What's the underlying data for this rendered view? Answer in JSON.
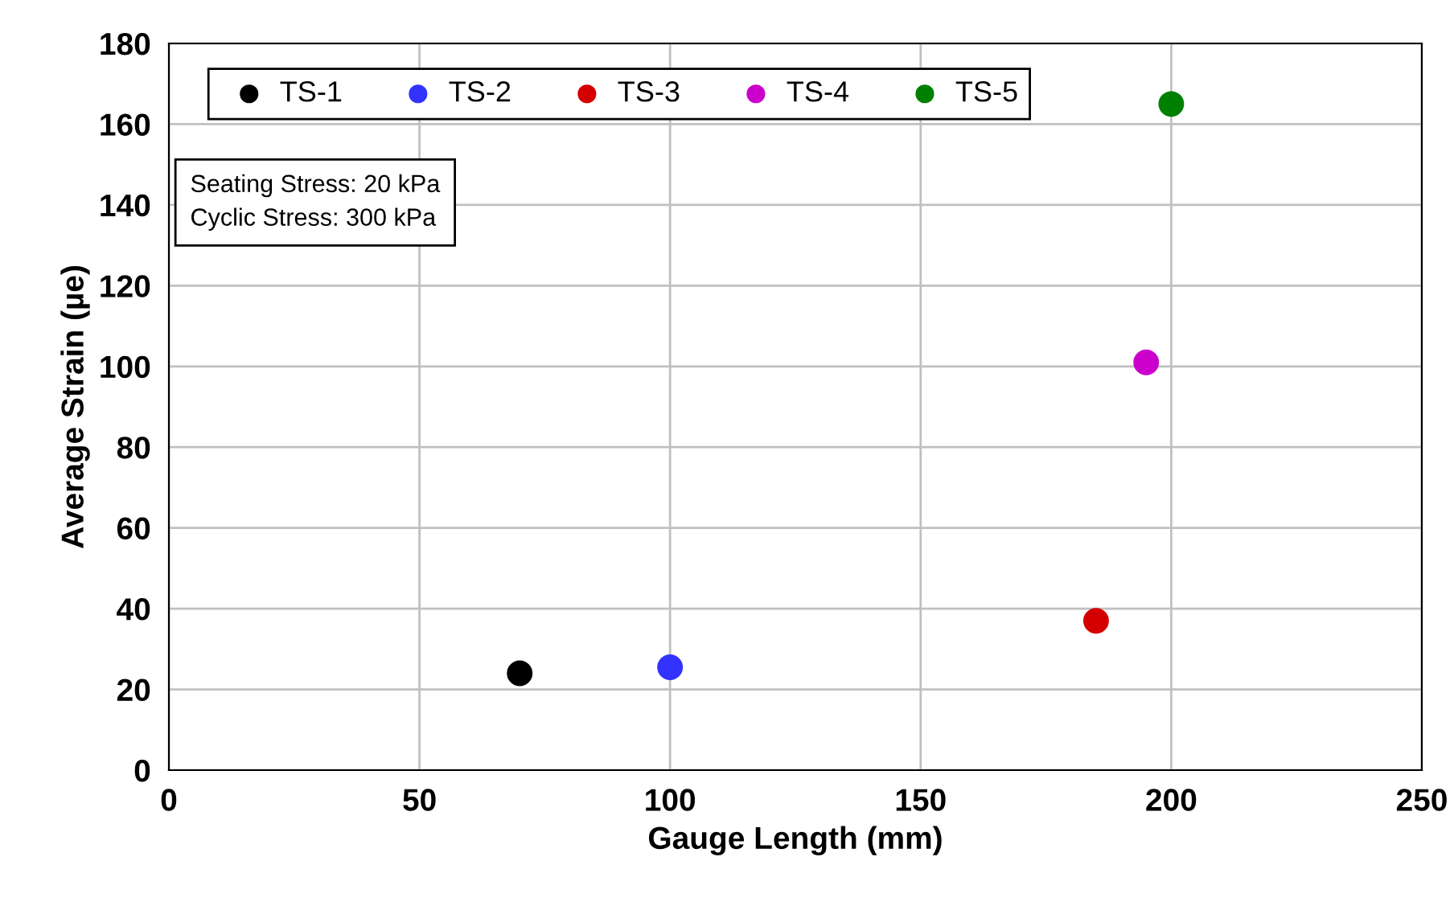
{
  "chart_data": {
    "type": "scatter",
    "xlabel": "Gauge Length (mm)",
    "ylabel": "Average Strain (µe)",
    "xlim": [
      0,
      250
    ],
    "xticks": [
      0,
      50,
      100,
      150,
      200,
      250
    ],
    "ylim": [
      0,
      180
    ],
    "yticks": [
      0,
      20,
      40,
      60,
      80,
      100,
      120,
      140,
      160,
      180
    ],
    "grid": true,
    "legend": "top left",
    "marker": "circle",
    "annotations": [
      "Seating Stress: 20 kPa\nCyclic Stress: 300 kPa"
    ],
    "series": [
      {
        "name": "TS-1",
        "color": "#000000",
        "x": [
          70
        ],
        "values": [
          24
        ]
      },
      {
        "name": "TS-2",
        "color": "#3333ff",
        "x": [
          100
        ],
        "values": [
          25.5
        ]
      },
      {
        "name": "TS-3",
        "color": "#d40000",
        "x": [
          185
        ],
        "values": [
          37
        ]
      },
      {
        "name": "TS-4",
        "color": "#cc00cc",
        "x": [
          195
        ],
        "values": [
          101
        ]
      },
      {
        "name": "TS-5",
        "color": "#008000",
        "x": [
          200
        ],
        "values": [
          165
        ]
      }
    ]
  }
}
